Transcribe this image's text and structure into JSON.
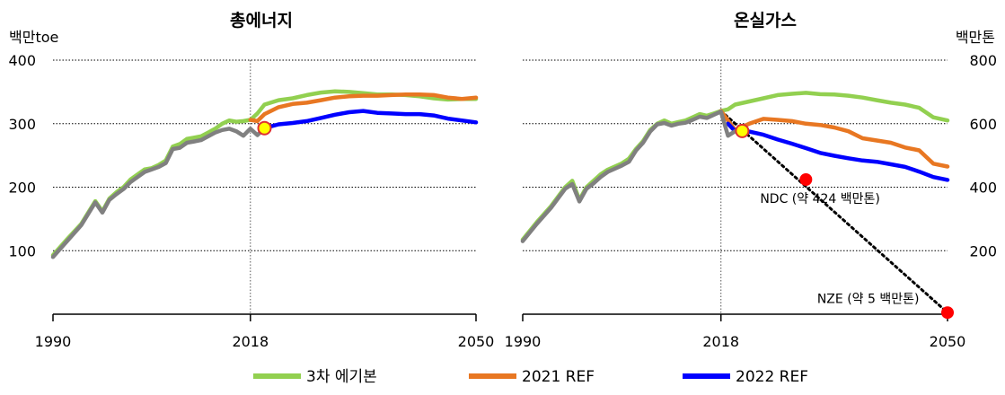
{
  "chart_data": [
    {
      "type": "line",
      "title": "총에너지",
      "ylabel": "백만toe",
      "ylim": [
        0,
        400
      ],
      "xlim": [
        1990,
        2050
      ],
      "yticks": [
        "100",
        "200",
        "300",
        "400"
      ],
      "ytick_values": [
        100,
        200,
        300,
        400
      ],
      "xticks": [
        "1990",
        "2018",
        "2050"
      ],
      "xtick_values": [
        1990,
        2018,
        2050
      ],
      "grid": "horizontal dotted",
      "series": [
        {
          "name": "3차 에기본",
          "color": "#92d050",
          "x": [
            1990,
            1992,
            1994,
            1996,
            1997,
            1998,
            1999,
            2000,
            2001,
            2002,
            2003,
            2004,
            2005,
            2006,
            2007,
            2008,
            2009,
            2010,
            2011,
            2012,
            2013,
            2014,
            2015,
            2016,
            2017,
            2018,
            2019,
            2020,
            2022,
            2024,
            2026,
            2028,
            2030,
            2032,
            2034,
            2036,
            2038,
            2040,
            2042,
            2044,
            2046,
            2048,
            2050
          ],
          "y": [
            93,
            118,
            142,
            178,
            162,
            182,
            192,
            200,
            212,
            220,
            228,
            230,
            235,
            242,
            264,
            268,
            276,
            278,
            280,
            286,
            292,
            300,
            305,
            303,
            304,
            306,
            316,
            330,
            337,
            340,
            345,
            349,
            351,
            350,
            348,
            346,
            346,
            345,
            343,
            340,
            338,
            339,
            339
          ]
        },
        {
          "name": "2021 REF",
          "color": "#e87722",
          "x": [
            2018,
            2019,
            2020,
            2022,
            2024,
            2026,
            2028,
            2030,
            2032,
            2034,
            2036,
            2038,
            2040,
            2042,
            2044,
            2046,
            2048,
            2050
          ],
          "y": [
            306,
            304,
            315,
            326,
            331,
            333,
            337,
            341,
            343,
            344,
            344,
            345,
            346,
            346,
            345,
            341,
            339,
            341
          ]
        },
        {
          "name": "2022 REF",
          "color": "#0000ff",
          "x": [
            2020,
            2022,
            2024,
            2026,
            2028,
            2030,
            2032,
            2034,
            2036,
            2038,
            2040,
            2042,
            2044,
            2046,
            2048,
            2050
          ],
          "y": [
            293,
            299,
            301,
            304,
            309,
            314,
            318,
            320,
            317,
            316,
            315,
            315,
            313,
            308,
            305,
            302
          ]
        },
        {
          "name": "",
          "color": "#808080",
          "x": [
            1990,
            1992,
            1994,
            1996,
            1997,
            1998,
            1999,
            2000,
            2001,
            2002,
            2003,
            2004,
            2005,
            2006,
            2007,
            2008,
            2009,
            2010,
            2011,
            2012,
            2013,
            2014,
            2015,
            2016,
            2017,
            2018,
            2019,
            2020
          ],
          "y": [
            90,
            115,
            140,
            176,
            160,
            180,
            189,
            197,
            208,
            216,
            224,
            228,
            232,
            238,
            260,
            262,
            270,
            272,
            274,
            280,
            286,
            290,
            292,
            288,
            281,
            292,
            282,
            293
          ]
        }
      ],
      "markers": [
        {
          "x": 2020,
          "y": 293,
          "fill": "#ffff00",
          "stroke": "#e03030"
        }
      ],
      "vline_x": 2018
    },
    {
      "type": "line",
      "title": "온실가스",
      "ylabel": "백만톤",
      "ylim": [
        0,
        800
      ],
      "xlim": [
        1990,
        2050
      ],
      "yticks": [
        "200",
        "400",
        "600",
        "800"
      ],
      "ytick_values": [
        200,
        400,
        600,
        800
      ],
      "xticks": [
        "1990",
        "2018",
        "2050"
      ],
      "xtick_values": [
        1990,
        2018,
        2050
      ],
      "grid": "horizontal dotted",
      "series": [
        {
          "name": "3차 에기본",
          "color": "#92d050",
          "x": [
            1990,
            1992,
            1994,
            1996,
            1997,
            1998,
            1999,
            2000,
            2001,
            2002,
            2003,
            2004,
            2005,
            2006,
            2007,
            2008,
            2009,
            2010,
            2011,
            2012,
            2013,
            2014,
            2015,
            2016,
            2017,
            2018,
            2019,
            2020,
            2022,
            2024,
            2026,
            2028,
            2030,
            2032,
            2034,
            2036,
            2038,
            2040,
            2042,
            2044,
            2046,
            2048,
            2050
          ],
          "y": [
            235,
            290,
            340,
            400,
            420,
            360,
            400,
            420,
            440,
            455,
            465,
            475,
            490,
            520,
            545,
            580,
            600,
            610,
            600,
            605,
            610,
            620,
            630,
            625,
            632,
            640,
            645,
            660,
            670,
            680,
            690,
            694,
            697,
            693,
            692,
            688,
            682,
            674,
            666,
            660,
            650,
            620,
            610
          ]
        },
        {
          "name": "2021 REF",
          "color": "#e87722",
          "x": [
            2018,
            2019,
            2020,
            2022,
            2024,
            2026,
            2028,
            2030,
            2032,
            2034,
            2036,
            2038,
            2040,
            2042,
            2044,
            2046,
            2048,
            2050
          ],
          "y": [
            640,
            610,
            580,
            600,
            615,
            612,
            608,
            600,
            596,
            588,
            576,
            554,
            547,
            540,
            525,
            516,
            474,
            465
          ]
        },
        {
          "name": "2022 REF",
          "color": "#0000ff",
          "x": [
            2019,
            2020,
            2022,
            2024,
            2026,
            2028,
            2030,
            2032,
            2034,
            2036,
            2038,
            2040,
            2042,
            2044,
            2046,
            2048,
            2050
          ],
          "y": [
            600,
            576,
            575,
            565,
            550,
            537,
            523,
            508,
            499,
            491,
            484,
            480,
            472,
            464,
            449,
            432,
            423
          ]
        },
        {
          "name": "",
          "color": "#808080",
          "x": [
            1990,
            1992,
            1994,
            1996,
            1997,
            1998,
            1999,
            2000,
            2001,
            2002,
            2003,
            2004,
            2005,
            2006,
            2007,
            2008,
            2009,
            2010,
            2011,
            2012,
            2013,
            2014,
            2015,
            2016,
            2017,
            2018,
            2019,
            2020
          ],
          "y": [
            230,
            285,
            335,
            395,
            410,
            355,
            395,
            412,
            432,
            448,
            458,
            468,
            480,
            515,
            540,
            575,
            598,
            602,
            594,
            600,
            603,
            612,
            622,
            618,
            628,
            638,
            562,
            576
          ]
        }
      ],
      "markers": [
        {
          "x": 2021,
          "y": 577,
          "fill": "#ffff00",
          "stroke": "#e03030"
        },
        {
          "x": 2030,
          "y": 424,
          "fill": "#ff0000",
          "stroke": "#ff0000"
        },
        {
          "x": 2050,
          "y": 5,
          "fill": "#ff0000",
          "stroke": "#ff0000"
        }
      ],
      "dotted_path": [
        [
          2018,
          640
        ],
        [
          2050,
          5
        ]
      ],
      "vline_x": 2018,
      "annotations": [
        {
          "text": "NDC (약 424 백만톤)",
          "x": 2032,
          "y": 350
        },
        {
          "text": "NZE (약 5 백만톤)",
          "x": 2046,
          "y": 35
        }
      ]
    }
  ],
  "legend": {
    "placement": "bottom",
    "items": [
      {
        "label": "3차 에기본",
        "color": "#92d050"
      },
      {
        "label": "2021 REF",
        "color": "#e87722"
      },
      {
        "label": "2022 REF",
        "color": "#0000ff"
      }
    ]
  }
}
